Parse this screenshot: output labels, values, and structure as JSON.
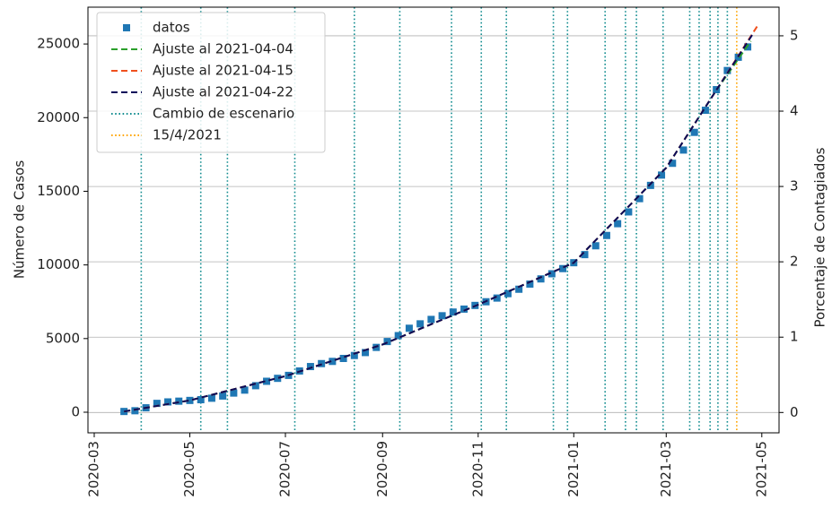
{
  "chart_data": {
    "type": "scatter",
    "ylabel": "Número de Casos",
    "y2label": "Porcentaje de Contagiados",
    "xlim": [
      "2020-02-26",
      "2021-05-12"
    ],
    "xticks": [
      "2020-03",
      "2020-05",
      "2020-07",
      "2020-09",
      "2020-11",
      "2021-01",
      "2021-03",
      "2021-05"
    ],
    "ylim": [
      -1400,
      27500
    ],
    "yticks": [
      0,
      5000,
      10000,
      15000,
      20000,
      25000
    ],
    "y2lim": [
      -0.27,
      5.38
    ],
    "y2ticks": [
      0,
      1,
      2,
      3,
      4,
      5
    ],
    "grid": true,
    "legend": "upper left",
    "series": [
      {
        "name": "datos",
        "style": "markers",
        "color": "#1f77b4",
        "x": [
          "2020-03-20",
          "2020-03-27",
          "2020-04-03",
          "2020-04-10",
          "2020-04-17",
          "2020-04-24",
          "2020-05-01",
          "2020-05-08",
          "2020-05-15",
          "2020-05-22",
          "2020-05-29",
          "2020-06-05",
          "2020-06-12",
          "2020-06-19",
          "2020-06-26",
          "2020-07-03",
          "2020-07-10",
          "2020-07-17",
          "2020-07-24",
          "2020-07-31",
          "2020-08-07",
          "2020-08-14",
          "2020-08-21",
          "2020-08-28",
          "2020-09-04",
          "2020-09-11",
          "2020-09-18",
          "2020-09-25",
          "2020-10-02",
          "2020-10-09",
          "2020-10-16",
          "2020-10-23",
          "2020-10-30",
          "2020-11-06",
          "2020-11-13",
          "2020-11-20",
          "2020-11-27",
          "2020-12-04",
          "2020-12-11",
          "2020-12-18",
          "2020-12-25",
          "2021-01-01",
          "2021-01-08",
          "2021-01-15",
          "2021-01-22",
          "2021-01-29",
          "2021-02-05",
          "2021-02-12",
          "2021-02-19",
          "2021-02-26",
          "2021-03-05",
          "2021-03-12",
          "2021-03-19",
          "2021-03-26",
          "2021-04-02",
          "2021-04-09",
          "2021-04-16",
          "2021-04-22"
        ],
        "values": [
          50,
          100,
          300,
          600,
          700,
          750,
          800,
          850,
          950,
          1100,
          1300,
          1500,
          1800,
          2100,
          2300,
          2500,
          2800,
          3100,
          3300,
          3450,
          3650,
          3850,
          4050,
          4400,
          4800,
          5200,
          5700,
          6000,
          6300,
          6550,
          6800,
          7000,
          7250,
          7500,
          7750,
          8050,
          8350,
          8700,
          9050,
          9400,
          9750,
          10150,
          10700,
          11300,
          12000,
          12800,
          13600,
          14500,
          15400,
          16100,
          16900,
          17800,
          19000,
          20500,
          21900,
          23200,
          24100,
          24800
        ]
      },
      {
        "name": "Ajuste al 2021-04-04",
        "style": "dashed",
        "color": "#2ca02c",
        "x": [
          "2020-03-20",
          "2020-05-01",
          "2020-07-01",
          "2020-09-01",
          "2020-11-01",
          "2021-01-01",
          "2021-03-01",
          "2021-04-01",
          "2021-04-24"
        ],
        "values": [
          50,
          800,
          2450,
          4600,
          7300,
          10150,
          16600,
          21700,
          25200
        ]
      },
      {
        "name": "Ajuste al 2021-04-15",
        "style": "dashed",
        "color": "#f0501e",
        "x": [
          "2020-03-20",
          "2020-05-01",
          "2020-07-01",
          "2020-09-01",
          "2020-11-01",
          "2021-01-01",
          "2021-03-01",
          "2021-04-01",
          "2021-04-28"
        ],
        "values": [
          50,
          800,
          2450,
          4600,
          7300,
          10150,
          16600,
          21700,
          26200
        ]
      },
      {
        "name": "Ajuste al 2021-04-22",
        "style": "dashed",
        "color": "#0a0a5a",
        "x": [
          "2020-03-20",
          "2020-05-01",
          "2020-07-01",
          "2020-09-01",
          "2020-11-01",
          "2021-01-01",
          "2021-03-01",
          "2021-04-01",
          "2021-04-26"
        ],
        "values": [
          50,
          800,
          2450,
          4600,
          7300,
          10150,
          16600,
          21700,
          25800
        ]
      }
    ],
    "vlines": [
      {
        "name": "Cambio de escenario",
        "color": "#138d90",
        "x": [
          "2020-03-31",
          "2020-05-08",
          "2020-05-25",
          "2020-07-07",
          "2020-08-14",
          "2020-09-12",
          "2020-10-15",
          "2020-11-03",
          "2020-11-19",
          "2020-12-19",
          "2020-12-28",
          "2021-01-21",
          "2021-02-03",
          "2021-02-10",
          "2021-02-27",
          "2021-03-16",
          "2021-03-22",
          "2021-03-29",
          "2021-04-03",
          "2021-04-09"
        ]
      },
      {
        "name": "15/4/2021",
        "color": "#ffa500",
        "x": [
          "2021-04-15"
        ]
      }
    ]
  }
}
